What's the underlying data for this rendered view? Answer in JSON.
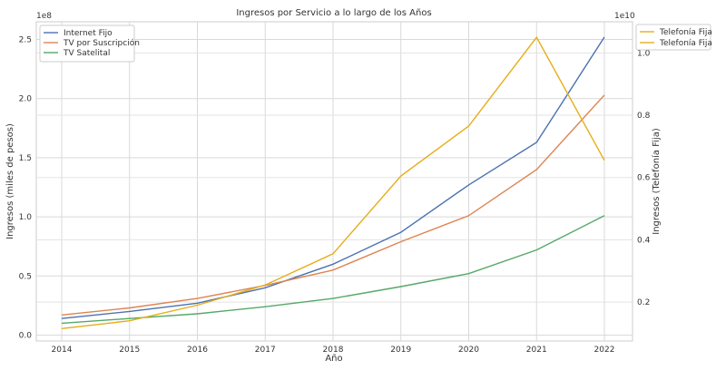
{
  "chart_data": {
    "type": "line",
    "title": "Ingresos por Servicio a lo largo de los Años",
    "xlabel": "Año",
    "ylabel": "Ingresos (miles de pesos)",
    "y2label": "Ingresos (Telefonía Fija)",
    "y_offset_label": "1e8",
    "y2_offset_label": "1e10",
    "categories": [
      2014,
      2015,
      2016,
      2017,
      2018,
      2019,
      2020,
      2021,
      2022
    ],
    "y_ticks": [
      "0.0",
      "0.5",
      "1.0",
      "1.5",
      "2.0",
      "2.5"
    ],
    "y2_ticks": [
      "0.2",
      "0.4",
      "0.6",
      "0.8",
      "1.0"
    ],
    "ylim": [
      -0.05,
      2.65
    ],
    "y2lim": [
      0.075,
      1.1
    ],
    "grid": true,
    "legend_left_position": "top-left",
    "legend_right_position": "outside-top-right",
    "series": [
      {
        "name": "Internet Fijo",
        "axis": "left",
        "color": "#4c72b0",
        "values": [
          0.14,
          0.2,
          0.27,
          0.4,
          0.6,
          0.87,
          1.27,
          1.63,
          2.52
        ]
      },
      {
        "name": "TV por Suscripción",
        "axis": "left",
        "color": "#dd8452",
        "values": [
          0.17,
          0.23,
          0.31,
          0.42,
          0.55,
          0.79,
          1.01,
          1.4,
          2.03
        ]
      },
      {
        "name": "TV Satelital",
        "axis": "left",
        "color": "#55a868",
        "values": [
          0.1,
          0.14,
          0.18,
          0.24,
          0.31,
          0.41,
          0.52,
          0.72,
          1.01
        ]
      },
      {
        "name": "Telefonía Fija",
        "axis": "right",
        "color": "#e6ad19",
        "values": [
          0.115,
          0.14,
          0.19,
          0.255,
          0.355,
          0.605,
          0.765,
          1.05,
          0.655
        ]
      }
    ],
    "legend_right_entries": [
      "Telefonía Fija",
      "Telefonía Fija"
    ]
  }
}
